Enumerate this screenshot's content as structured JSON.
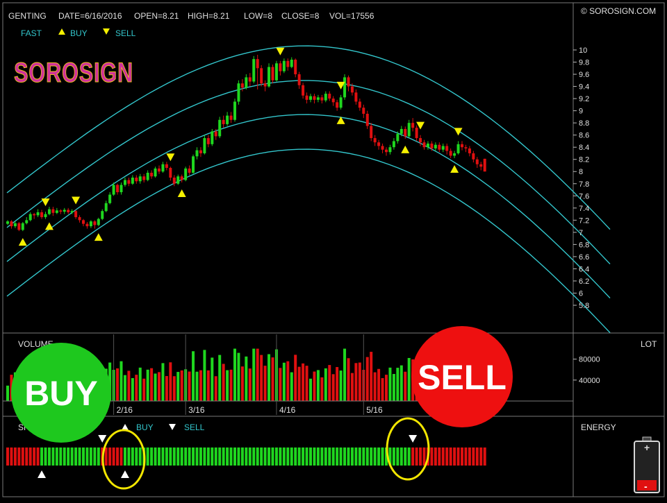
{
  "header": {
    "symbol": "GENTING",
    "date": "DATE=6/16/2016",
    "open": "OPEN=8.21",
    "high": "HIGH=8.21",
    "low": "LOW=8",
    "close": "CLOSE=8",
    "vol": "VOL=17556",
    "copyright": "© SOROSIGN.COM"
  },
  "legend": {
    "fast": "FAST",
    "buy": "BUY",
    "sell": "SELL"
  },
  "logo": {
    "text": "SOROSIGN"
  },
  "volume_panel": {
    "title": "VOLUME",
    "unit": "LOT"
  },
  "signal_panel": {
    "title": "SHORT TERM",
    "buy": "BUY",
    "sell": "SELL",
    "energy": "ENERGY"
  },
  "badges": {
    "buy": "BUY",
    "sell": "SELL"
  },
  "colors": {
    "up": "#1fd71f",
    "down": "#e01010",
    "band": "#33c6cc",
    "buy_marker": "#f5f000",
    "signal_marker": "#ffffff",
    "circle": "#f2e600",
    "buy_badge": "#1ec81e",
    "sell_badge": "#ee1010"
  },
  "chart_data": {
    "type": "candlestick",
    "ylim": [
      5.7,
      10.1
    ],
    "yticks": [
      "10",
      "9.8",
      "9.6",
      "9.4",
      "9.2",
      "9",
      "8.8",
      "8.6",
      "8.4",
      "8.2",
      "8",
      "7.8",
      "7.6",
      "7.4",
      "7.2",
      "7",
      "6.8",
      "6.6",
      "6.4",
      "6.2",
      "6",
      "5.8"
    ],
    "xticks": [
      "2/16",
      "3/16",
      "4/16",
      "5/16",
      "6/16"
    ],
    "xtick_index": [
      28,
      47,
      71,
      94,
      115
    ],
    "candles": [
      [
        7.14,
        7.18,
        7.2,
        7.12
      ],
      [
        7.18,
        7.1,
        7.2,
        7.06
      ],
      [
        7.1,
        7.15,
        7.18,
        7.07
      ],
      [
        7.15,
        7.04,
        7.17,
        7.02
      ],
      [
        7.04,
        7.15,
        7.17,
        7.02
      ],
      [
        7.15,
        7.2,
        7.25,
        7.13
      ],
      [
        7.2,
        7.3,
        7.33,
        7.18
      ],
      [
        7.3,
        7.28,
        7.32,
        7.22
      ],
      [
        7.28,
        7.33,
        7.38,
        7.25
      ],
      [
        7.33,
        7.25,
        7.37,
        7.22
      ],
      [
        7.25,
        7.3,
        7.34,
        7.22
      ],
      [
        7.3,
        7.38,
        7.42,
        7.28
      ],
      [
        7.38,
        7.32,
        7.42,
        7.27
      ],
      [
        7.32,
        7.36,
        7.4,
        7.3
      ],
      [
        7.36,
        7.34,
        7.38,
        7.3
      ],
      [
        7.34,
        7.37,
        7.4,
        7.3
      ],
      [
        7.37,
        7.33,
        7.4,
        7.3
      ],
      [
        7.33,
        7.35,
        7.38,
        7.3
      ],
      [
        7.35,
        7.25,
        7.37,
        7.22
      ],
      [
        7.25,
        7.2,
        7.28,
        7.16
      ],
      [
        7.2,
        7.14,
        7.22,
        7.1
      ],
      [
        7.14,
        7.1,
        7.17,
        7.06
      ],
      [
        7.1,
        7.18,
        7.2,
        7.07
      ],
      [
        7.18,
        7.12,
        7.2,
        7.06
      ],
      [
        7.12,
        7.22,
        7.24,
        7.1
      ],
      [
        7.22,
        7.35,
        7.38,
        7.2
      ],
      [
        7.35,
        7.48,
        7.52,
        7.33
      ],
      [
        7.48,
        7.62,
        7.66,
        7.46
      ],
      [
        7.62,
        7.78,
        7.82,
        7.6
      ],
      [
        7.78,
        7.66,
        7.8,
        7.62
      ],
      [
        7.66,
        7.78,
        7.82,
        7.62
      ],
      [
        7.78,
        7.86,
        7.9,
        7.75
      ],
      [
        7.86,
        7.8,
        7.9,
        7.76
      ],
      [
        7.8,
        7.9,
        7.94,
        7.78
      ],
      [
        7.9,
        7.84,
        7.94,
        7.8
      ],
      [
        7.84,
        7.92,
        7.96,
        7.8
      ],
      [
        7.92,
        7.86,
        7.96,
        7.82
      ],
      [
        7.86,
        7.98,
        8.02,
        7.84
      ],
      [
        7.98,
        7.92,
        8.02,
        7.88
      ],
      [
        7.92,
        8.05,
        8.08,
        7.9
      ],
      [
        8.05,
        8.0,
        8.1,
        7.96
      ],
      [
        8.0,
        8.12,
        8.16,
        7.98
      ],
      [
        8.12,
        8.06,
        8.16,
        8.02
      ],
      [
        8.06,
        7.9,
        8.08,
        7.85
      ],
      [
        7.9,
        7.8,
        7.94,
        7.76
      ],
      [
        7.8,
        7.92,
        7.95,
        7.78
      ],
      [
        7.92,
        7.86,
        7.95,
        7.82
      ],
      [
        7.86,
        8.05,
        8.08,
        7.84
      ],
      [
        8.05,
        7.98,
        8.1,
        7.94
      ],
      [
        7.98,
        8.25,
        8.28,
        7.96
      ],
      [
        8.25,
        8.35,
        8.4,
        8.2
      ],
      [
        8.35,
        8.3,
        8.4,
        8.24
      ],
      [
        8.3,
        8.55,
        8.6,
        8.28
      ],
      [
        8.55,
        8.45,
        8.6,
        8.4
      ],
      [
        8.45,
        8.66,
        8.7,
        8.42
      ],
      [
        8.66,
        8.58,
        8.7,
        8.52
      ],
      [
        8.58,
        8.85,
        8.9,
        8.55
      ],
      [
        8.85,
        8.78,
        8.92,
        8.72
      ],
      [
        8.78,
        8.92,
        8.98,
        8.75
      ],
      [
        8.92,
        8.85,
        8.98,
        8.8
      ],
      [
        8.85,
        9.15,
        9.2,
        8.82
      ],
      [
        9.15,
        9.45,
        9.5,
        9.1
      ],
      [
        9.45,
        9.38,
        9.52,
        9.32
      ],
      [
        9.38,
        9.55,
        9.6,
        9.35
      ],
      [
        9.55,
        9.48,
        9.62,
        9.4
      ],
      [
        9.48,
        9.85,
        9.9,
        9.45
      ],
      [
        9.85,
        9.7,
        9.92,
        9.35
      ],
      [
        9.7,
        9.45,
        9.75,
        9.4
      ],
      [
        9.45,
        9.4,
        9.5,
        9.32
      ],
      [
        9.4,
        9.72,
        9.78,
        9.38
      ],
      [
        9.72,
        9.5,
        9.76,
        9.45
      ],
      [
        9.5,
        9.78,
        9.82,
        9.48
      ],
      [
        9.78,
        9.65,
        9.82,
        9.58
      ],
      [
        9.65,
        9.82,
        9.86,
        9.62
      ],
      [
        9.82,
        9.72,
        9.86,
        9.66
      ],
      [
        9.72,
        9.84,
        9.88,
        9.7
      ],
      [
        9.84,
        9.6,
        9.86,
        9.55
      ],
      [
        9.6,
        9.42,
        9.64,
        9.36
      ],
      [
        9.42,
        9.25,
        9.46,
        9.2
      ],
      [
        9.25,
        9.18,
        9.3,
        9.12
      ],
      [
        9.18,
        9.24,
        9.28,
        9.14
      ],
      [
        9.24,
        9.18,
        9.28,
        9.12
      ],
      [
        9.18,
        9.22,
        9.26,
        9.14
      ],
      [
        9.22,
        9.17,
        9.26,
        9.12
      ],
      [
        9.17,
        9.28,
        9.32,
        9.14
      ],
      [
        9.28,
        9.2,
        9.32,
        9.16
      ],
      [
        9.2,
        9.14,
        9.24,
        9.08
      ],
      [
        9.14,
        9.05,
        9.18,
        9.0
      ],
      [
        9.05,
        9.22,
        9.26,
        9.02
      ],
      [
        9.22,
        9.55,
        9.6,
        9.18
      ],
      [
        9.55,
        9.4,
        9.58,
        9.32
      ],
      [
        9.4,
        9.3,
        9.45,
        9.25
      ],
      [
        9.3,
        9.15,
        9.35,
        9.1
      ],
      [
        9.15,
        9.05,
        9.2,
        9.0
      ],
      [
        9.05,
        8.95,
        9.1,
        8.88
      ],
      [
        8.95,
        8.75,
        9.0,
        8.7
      ],
      [
        8.75,
        8.55,
        8.8,
        8.5
      ],
      [
        8.55,
        8.48,
        8.6,
        8.42
      ],
      [
        8.48,
        8.42,
        8.52,
        8.36
      ],
      [
        8.42,
        8.36,
        8.46,
        8.3
      ],
      [
        8.36,
        8.32,
        8.4,
        8.26
      ],
      [
        8.32,
        8.4,
        8.44,
        8.28
      ],
      [
        8.4,
        8.5,
        8.55,
        8.36
      ],
      [
        8.5,
        8.62,
        8.66,
        8.46
      ],
      [
        8.62,
        8.7,
        8.75,
        8.58
      ],
      [
        8.7,
        8.58,
        8.74,
        8.54
      ],
      [
        8.58,
        8.8,
        8.85,
        8.56
      ],
      [
        8.8,
        8.72,
        8.88,
        8.66
      ],
      [
        8.72,
        8.55,
        8.76,
        8.5
      ],
      [
        8.55,
        8.48,
        8.6,
        8.42
      ],
      [
        8.48,
        8.4,
        8.52,
        8.36
      ],
      [
        8.4,
        8.46,
        8.5,
        8.36
      ],
      [
        8.46,
        8.38,
        8.5,
        8.34
      ],
      [
        8.38,
        8.44,
        8.48,
        8.34
      ],
      [
        8.44,
        8.36,
        8.48,
        8.32
      ],
      [
        8.36,
        8.42,
        8.46,
        8.32
      ],
      [
        8.42,
        8.34,
        8.46,
        8.28
      ],
      [
        8.34,
        8.26,
        8.38,
        8.22
      ],
      [
        8.26,
        8.3,
        8.34,
        8.22
      ],
      [
        8.3,
        8.45,
        8.5,
        8.28
      ],
      [
        8.45,
        8.4,
        8.5,
        8.35
      ],
      [
        8.4,
        8.38,
        8.44,
        8.32
      ],
      [
        8.38,
        8.3,
        8.42,
        8.25
      ],
      [
        8.3,
        8.2,
        8.34,
        8.15
      ],
      [
        8.2,
        8.12,
        8.24,
        8.06
      ],
      [
        8.12,
        8.08,
        8.16,
        8.02
      ],
      [
        8.21,
        8.0,
        8.21,
        8.0
      ]
    ],
    "volume_ticks": [
      "80000",
      "40000"
    ],
    "volume_ylim": [
      0,
      110000
    ],
    "sell_markers_idx": [
      10,
      18,
      43,
      72,
      88,
      109,
      119
    ],
    "buy_markers_idx": [
      4,
      11,
      24,
      46,
      88,
      105,
      118
    ]
  }
}
